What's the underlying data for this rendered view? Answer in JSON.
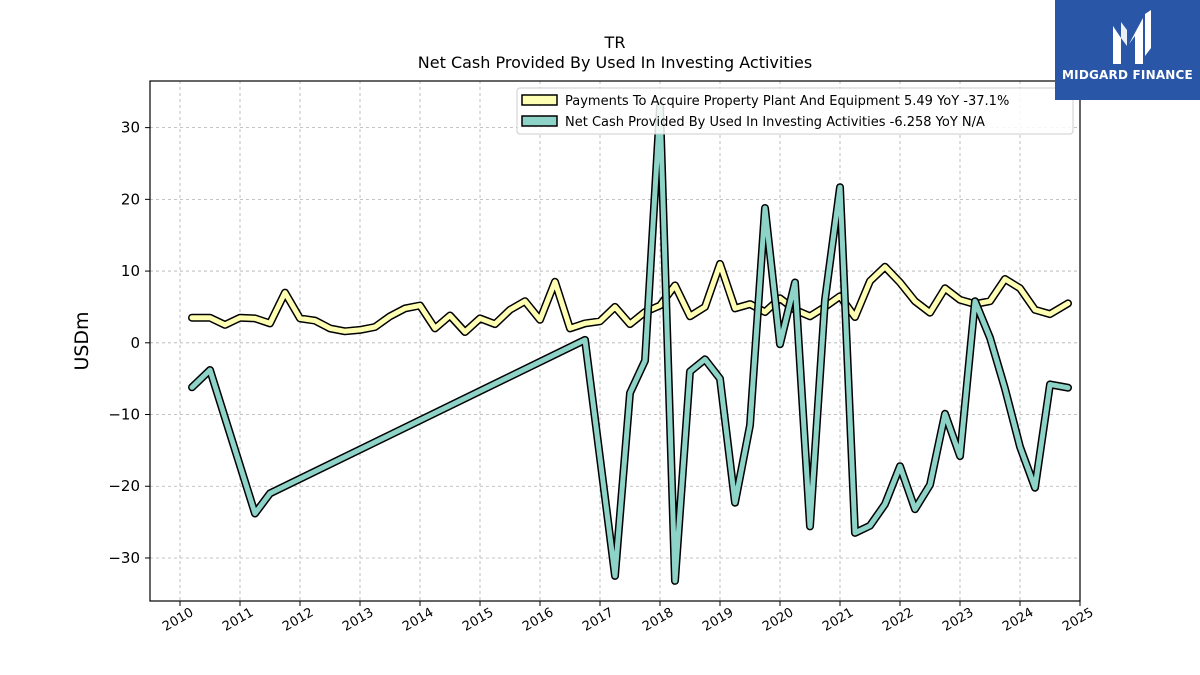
{
  "chart_data": {
    "type": "line",
    "title": "TR",
    "subtitle": "Net Cash Provided By Used In Investing Activities",
    "ylabel": "USDm",
    "xlabel": "",
    "ylim": [
      -36,
      36.5
    ],
    "xlim": [
      2009.5,
      2025.0
    ],
    "yticks": [
      -30,
      -20,
      -10,
      0,
      10,
      20,
      30
    ],
    "xticks": [
      2010,
      2011,
      2012,
      2013,
      2014,
      2015,
      2016,
      2017,
      2018,
      2019,
      2020,
      2021,
      2022,
      2023,
      2024,
      2025
    ],
    "grid": true,
    "legend_position": "top-right",
    "series": [
      {
        "name": "Payments To Acquire Property Plant And Equipment  5.49 YoY -37.1%",
        "color": "#ffffb3",
        "points": [
          [
            2010.2,
            3.5
          ],
          [
            2010.5,
            3.5
          ],
          [
            2010.75,
            2.5
          ],
          [
            2011.0,
            3.5
          ],
          [
            2011.25,
            3.4
          ],
          [
            2011.5,
            2.7
          ],
          [
            2011.75,
            7.0
          ],
          [
            2012.0,
            3.4
          ],
          [
            2012.25,
            3.1
          ],
          [
            2012.5,
            2.0
          ],
          [
            2012.75,
            1.6
          ],
          [
            2013.0,
            1.8
          ],
          [
            2013.25,
            2.2
          ],
          [
            2013.5,
            3.7
          ],
          [
            2013.75,
            4.8
          ],
          [
            2014.0,
            5.2
          ],
          [
            2014.25,
            2.0
          ],
          [
            2014.5,
            3.8
          ],
          [
            2014.75,
            1.5
          ],
          [
            2015.0,
            3.4
          ],
          [
            2015.25,
            2.6
          ],
          [
            2015.5,
            4.6
          ],
          [
            2015.75,
            5.8
          ],
          [
            2016.0,
            3.2
          ],
          [
            2016.25,
            8.5
          ],
          [
            2016.5,
            2.0
          ],
          [
            2016.75,
            2.7
          ],
          [
            2017.0,
            3.0
          ],
          [
            2017.25,
            5.0
          ],
          [
            2017.5,
            2.6
          ],
          [
            2017.75,
            4.3
          ],
          [
            2018.0,
            5.2
          ],
          [
            2018.25,
            8.0
          ],
          [
            2018.5,
            3.7
          ],
          [
            2018.75,
            5.0
          ],
          [
            2019.0,
            11.0
          ],
          [
            2019.25,
            4.8
          ],
          [
            2019.5,
            5.4
          ],
          [
            2019.75,
            4.3
          ],
          [
            2020.0,
            6.2
          ],
          [
            2020.25,
            4.6
          ],
          [
            2020.5,
            3.7
          ],
          [
            2020.75,
            5.0
          ],
          [
            2021.0,
            6.5
          ],
          [
            2021.25,
            3.6
          ],
          [
            2021.5,
            8.6
          ],
          [
            2021.75,
            10.6
          ],
          [
            2022.0,
            8.4
          ],
          [
            2022.25,
            5.8
          ],
          [
            2022.5,
            4.2
          ],
          [
            2022.75,
            7.6
          ],
          [
            2023.0,
            6.0
          ],
          [
            2023.25,
            5.4
          ],
          [
            2023.5,
            5.8
          ],
          [
            2023.75,
            8.9
          ],
          [
            2024.0,
            7.6
          ],
          [
            2024.25,
            4.6
          ],
          [
            2024.5,
            4.0
          ],
          [
            2024.8,
            5.49
          ]
        ]
      },
      {
        "name": "Net Cash Provided By Used In Investing Activities  -6.258 YoY N/A",
        "color": "#8dd3c7",
        "points": [
          [
            2010.2,
            -6.2
          ],
          [
            2010.5,
            -3.8
          ],
          [
            2011.25,
            -23.8
          ],
          [
            2011.5,
            -21.0
          ],
          [
            2016.75,
            0.4
          ],
          [
            2017.25,
            -32.5
          ],
          [
            2017.5,
            -7.0
          ],
          [
            2017.75,
            -2.5
          ],
          [
            2018.0,
            33.0
          ],
          [
            2018.25,
            -33.2
          ],
          [
            2018.5,
            -4.0
          ],
          [
            2018.75,
            -2.3
          ],
          [
            2019.0,
            -5.0
          ],
          [
            2019.25,
            -22.3
          ],
          [
            2019.5,
            -11.5
          ],
          [
            2019.75,
            18.8
          ],
          [
            2020.0,
            -0.2
          ],
          [
            2020.25,
            8.4
          ],
          [
            2020.5,
            -25.6
          ],
          [
            2020.75,
            6.0
          ],
          [
            2021.0,
            21.7
          ],
          [
            2021.25,
            -26.5
          ],
          [
            2021.5,
            -25.5
          ],
          [
            2021.75,
            -22.5
          ],
          [
            2022.0,
            -17.2
          ],
          [
            2022.25,
            -23.2
          ],
          [
            2022.5,
            -19.8
          ],
          [
            2022.75,
            -9.9
          ],
          [
            2023.0,
            -15.8
          ],
          [
            2023.25,
            5.8
          ],
          [
            2023.5,
            0.7
          ],
          [
            2023.75,
            -6.4
          ],
          [
            2024.0,
            -14.5
          ],
          [
            2024.25,
            -20.2
          ],
          [
            2024.5,
            -5.8
          ],
          [
            2024.8,
            -6.258
          ]
        ]
      }
    ]
  },
  "logo": {
    "text": "MIDGARD FINANCE",
    "icon": "midgard-finance-logo-icon",
    "background": "#2a56a8"
  }
}
